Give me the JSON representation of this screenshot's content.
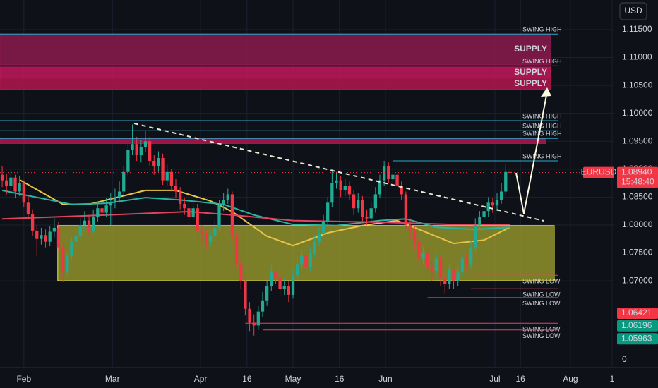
{
  "chart_data": {
    "type": "candlestick",
    "symbol": "EURUSD",
    "currency": "USD",
    "up_color": "#22ab94",
    "down_color": "#f23645",
    "xlim": [
      -0.5,
      141
    ],
    "ylim": [
      1.0546,
      1.1203
    ],
    "yticks": [
      {
        "value": 1.115,
        "label": "1.11500"
      },
      {
        "value": 1.11,
        "label": "1.11000"
      },
      {
        "value": 1.105,
        "label": "1.10500"
      },
      {
        "value": 1.1,
        "label": "1.10000"
      },
      {
        "value": 1.095,
        "label": "1.09500"
      },
      {
        "value": 1.09,
        "label": "1.09000"
      },
      {
        "value": 1.085,
        "label": "1.08500"
      },
      {
        "value": 1.08,
        "label": "1.08000"
      },
      {
        "value": 1.075,
        "label": "1.07500"
      },
      {
        "value": 1.07,
        "label": "1.07000"
      }
    ],
    "xticks": [
      {
        "value": 5,
        "label": "Feb"
      },
      {
        "value": 25.4,
        "label": "Mar"
      },
      {
        "value": 45.7,
        "label": "Apr"
      },
      {
        "value": 56.4,
        "label": "16"
      },
      {
        "value": 67,
        "label": "May"
      },
      {
        "value": 77.7,
        "label": "16"
      },
      {
        "value": 88.3,
        "label": "Jun"
      },
      {
        "value": 113.5,
        "label": "Jul"
      },
      {
        "value": 119.4,
        "label": "16"
      },
      {
        "value": 130.9,
        "label": "Aug"
      },
      {
        "value": 140.5,
        "label": "1"
      }
    ],
    "volume_scale_label": "0",
    "current_price": {
      "value": 1.0894,
      "label": "1.08940",
      "countdown": "15:48:40"
    },
    "price_tags": [
      {
        "value": 1.06421,
        "label": "1.06421",
        "color": "#f23645"
      },
      {
        "value": 1.06196,
        "label": "1.06196",
        "color": "#089981"
      },
      {
        "value": 1.05963,
        "label": "1.05963",
        "color": "#089981"
      }
    ],
    "ohlc": [
      [
        1.089,
        1.0905,
        1.0868,
        1.088
      ],
      [
        1.088,
        1.0892,
        1.0855,
        1.087
      ],
      [
        1.087,
        1.0898,
        1.0862,
        1.0885
      ],
      [
        1.0885,
        1.089,
        1.0848,
        1.086
      ],
      [
        1.086,
        1.0888,
        1.0852,
        1.0875
      ],
      [
        1.0875,
        1.088,
        1.0832,
        1.084
      ],
      [
        1.084,
        1.0852,
        1.081,
        1.082
      ],
      [
        1.082,
        1.0828,
        1.078,
        1.079
      ],
      [
        1.079,
        1.08,
        1.0745,
        1.0775
      ],
      [
        1.0775,
        1.0795,
        1.0765,
        1.0782
      ],
      [
        1.0782,
        1.0792,
        1.076,
        1.077
      ],
      [
        1.077,
        1.0798,
        1.0762,
        1.0788
      ],
      [
        1.0788,
        1.0812,
        1.0778,
        1.0795
      ],
      [
        1.0795,
        1.0805,
        1.0752,
        1.076
      ],
      [
        1.076,
        1.0768,
        1.0698,
        1.0715
      ],
      [
        1.0715,
        1.0752,
        1.0708,
        1.0745
      ],
      [
        1.0745,
        1.0778,
        1.0738,
        1.077
      ],
      [
        1.077,
        1.0792,
        1.076,
        1.078
      ],
      [
        1.078,
        1.0812,
        1.0772,
        1.08
      ],
      [
        1.08,
        1.0825,
        1.079,
        1.0808
      ],
      [
        1.0808,
        1.0818,
        1.0782,
        1.079
      ],
      [
        1.079,
        1.0828,
        1.0785,
        1.0815
      ],
      [
        1.0815,
        1.0842,
        1.0805,
        1.083
      ],
      [
        1.083,
        1.084,
        1.081,
        1.0822
      ],
      [
        1.0822,
        1.0848,
        1.0815,
        1.0835
      ],
      [
        1.0835,
        1.0858,
        1.08,
        1.084
      ],
      [
        1.084,
        1.0865,
        1.083,
        1.085
      ],
      [
        1.085,
        1.0878,
        1.084,
        1.086
      ],
      [
        1.086,
        1.0905,
        1.0852,
        1.0895
      ],
      [
        1.0895,
        1.0948,
        1.0888,
        1.0935
      ],
      [
        1.0935,
        1.098,
        1.0925,
        1.0945
      ],
      [
        1.0945,
        1.0958,
        1.0915,
        1.0925
      ],
      [
        1.0925,
        1.0952,
        1.0912,
        1.094
      ],
      [
        1.094,
        1.0968,
        1.093,
        1.095
      ],
      [
        1.095,
        1.0958,
        1.0905,
        1.0915
      ],
      [
        1.0915,
        1.0925,
        1.089,
        1.0905
      ],
      [
        1.0905,
        1.0932,
        1.0895,
        1.092
      ],
      [
        1.092,
        1.0928,
        1.0872,
        1.088
      ],
      [
        1.088,
        1.0908,
        1.087,
        1.0895
      ],
      [
        1.0895,
        1.09,
        1.086,
        1.087
      ],
      [
        1.087,
        1.0882,
        1.0848,
        1.086
      ],
      [
        1.086,
        1.0868,
        1.0828,
        1.0838
      ],
      [
        1.0838,
        1.0848,
        1.0818,
        1.083
      ],
      [
        1.083,
        1.084,
        1.08,
        1.0815
      ],
      [
        1.0815,
        1.0842,
        1.0808,
        1.083
      ],
      [
        1.083,
        1.0838,
        1.0775,
        1.079
      ],
      [
        1.079,
        1.08,
        1.077,
        1.0785
      ],
      [
        1.0785,
        1.0792,
        1.0755,
        1.077
      ],
      [
        1.077,
        1.079,
        1.0762,
        1.078
      ],
      [
        1.078,
        1.0808,
        1.0772,
        1.0795
      ],
      [
        1.0795,
        1.0845,
        1.0788,
        1.0835
      ],
      [
        1.0835,
        1.0858,
        1.0825,
        1.0845
      ],
      [
        1.0845,
        1.0865,
        1.0838,
        1.0855
      ],
      [
        1.0855,
        1.086,
        1.077,
        1.078
      ],
      [
        1.078,
        1.0788,
        1.072,
        1.073
      ],
      [
        1.073,
        1.0738,
        1.0685,
        1.07
      ],
      [
        1.07,
        1.071,
        1.0638,
        1.065
      ],
      [
        1.065,
        1.0662,
        1.061,
        1.0625
      ],
      [
        1.0625,
        1.064,
        1.0602,
        1.062
      ],
      [
        1.062,
        1.0655,
        1.0612,
        1.0645
      ],
      [
        1.0645,
        1.068,
        1.0635,
        1.0665
      ],
      [
        1.0665,
        1.07,
        1.0655,
        1.069
      ],
      [
        1.069,
        1.0728,
        1.0682,
        1.0715
      ],
      [
        1.0715,
        1.0725,
        1.0695,
        1.0705
      ],
      [
        1.0705,
        1.0715,
        1.0672,
        1.0685
      ],
      [
        1.0685,
        1.0705,
        1.0675,
        1.069
      ],
      [
        1.069,
        1.07,
        1.0662,
        1.0675
      ],
      [
        1.0675,
        1.072,
        1.0668,
        1.071
      ],
      [
        1.071,
        1.0742,
        1.0702,
        1.073
      ],
      [
        1.073,
        1.0755,
        1.072,
        1.0745
      ],
      [
        1.0745,
        1.0752,
        1.0715,
        1.0725
      ],
      [
        1.0725,
        1.076,
        1.0718,
        1.075
      ],
      [
        1.075,
        1.0782,
        1.0742,
        1.077
      ],
      [
        1.077,
        1.0795,
        1.0762,
        1.0785
      ],
      [
        1.0785,
        1.0818,
        1.0778,
        1.0805
      ],
      [
        1.0805,
        1.085,
        1.0798,
        1.084
      ],
      [
        1.084,
        1.09,
        1.0832,
        1.0875
      ],
      [
        1.0875,
        1.0895,
        1.0865,
        1.088
      ],
      [
        1.088,
        1.0888,
        1.085,
        1.0862
      ],
      [
        1.0862,
        1.0882,
        1.0852,
        1.087
      ],
      [
        1.087,
        1.0878,
        1.0845,
        1.0855
      ],
      [
        1.0855,
        1.0862,
        1.0818,
        1.083
      ],
      [
        1.083,
        1.0858,
        1.0822,
        1.0845
      ],
      [
        1.0845,
        1.0852,
        1.0805,
        1.0815
      ],
      [
        1.0815,
        1.0828,
        1.08,
        1.0812
      ],
      [
        1.0812,
        1.0842,
        1.0805,
        1.083
      ],
      [
        1.083,
        1.0868,
        1.0822,
        1.0855
      ],
      [
        1.0855,
        1.089,
        1.0848,
        1.088
      ],
      [
        1.088,
        1.0915,
        1.087,
        1.0905
      ],
      [
        1.0905,
        1.0912,
        1.0875,
        1.0882
      ],
      [
        1.0882,
        1.0902,
        1.087,
        1.089
      ],
      [
        1.089,
        1.0898,
        1.0862,
        1.087
      ],
      [
        1.087,
        1.0878,
        1.0845,
        1.0855
      ],
      [
        1.0855,
        1.086,
        1.0792,
        1.08
      ],
      [
        1.08,
        1.0812,
        1.0775,
        1.079
      ],
      [
        1.079,
        1.0798,
        1.0755,
        1.077
      ],
      [
        1.077,
        1.0778,
        1.0728,
        1.074
      ],
      [
        1.074,
        1.0762,
        1.073,
        1.075
      ],
      [
        1.075,
        1.0758,
        1.0712,
        1.0725
      ],
      [
        1.0725,
        1.0735,
        1.07,
        1.0718
      ],
      [
        1.0718,
        1.075,
        1.0708,
        1.074
      ],
      [
        1.074,
        1.0745,
        1.069,
        1.0705
      ],
      [
        1.0705,
        1.0715,
        1.0678,
        1.0695
      ],
      [
        1.0695,
        1.073,
        1.0685,
        1.072
      ],
      [
        1.072,
        1.0728,
        1.0685,
        1.07
      ],
      [
        1.07,
        1.0725,
        1.069,
        1.0715
      ],
      [
        1.0715,
        1.075,
        1.0708,
        1.074
      ],
      [
        1.074,
        1.0748,
        1.0718,
        1.073
      ],
      [
        1.073,
        1.0772,
        1.0722,
        1.076
      ],
      [
        1.076,
        1.0812,
        1.0752,
        1.08
      ],
      [
        1.08,
        1.0825,
        1.0792,
        1.0815
      ],
      [
        1.0815,
        1.0838,
        1.0805,
        1.0825
      ],
      [
        1.0825,
        1.085,
        1.0815,
        1.084
      ],
      [
        1.084,
        1.0848,
        1.0822,
        1.0835
      ],
      [
        1.0835,
        1.0858,
        1.0825,
        1.0845
      ],
      [
        1.0845,
        1.0875,
        1.0838,
        1.086
      ],
      [
        1.086,
        1.0908,
        1.0855,
        1.0895
      ],
      [
        1.0895,
        1.0902,
        1.088,
        1.0894
      ]
    ],
    "moving_averages": [
      {
        "color": "#e8c547",
        "x": [
          4,
          14,
          20,
          33,
          40,
          48,
          53,
          61,
          67,
          75,
          83,
          91,
          98,
          104,
          111,
          117
        ],
        "values": [
          1.0881,
          1.0837,
          1.0837,
          1.0862,
          1.0862,
          1.0843,
          1.0824,
          1.078,
          1.0763,
          1.0786,
          1.0799,
          1.0808,
          1.0786,
          1.0767,
          1.0773,
          1.0796
        ]
      },
      {
        "color": "#2bb5a0",
        "x": [
          0,
          16,
          24,
          33,
          41,
          51,
          58,
          67,
          77,
          87,
          93,
          100,
          109,
          117
        ],
        "values": [
          1.0862,
          1.0837,
          1.0839,
          1.0849,
          1.0845,
          1.0837,
          1.0818,
          1.0801,
          1.0799,
          1.0808,
          1.0811,
          1.0796,
          1.0792,
          1.0796
        ]
      },
      {
        "color": "#e0445e",
        "x": [
          0,
          24,
          43,
          53,
          67,
          87,
          104,
          117
        ],
        "values": [
          1.0811,
          1.0818,
          1.0824,
          1.0818,
          1.0808,
          1.0805,
          1.0801,
          1.0801
        ]
      }
    ],
    "zones": [
      {
        "label": "SUPPLY",
        "top": 1.1142,
        "bottom": 1.1087,
        "start": -0.5,
        "color": "#8a1a4e"
      },
      {
        "label": "SUPPLY",
        "top": 1.1083,
        "bottom": 1.1063,
        "start": -0.5,
        "color": "#c2185b"
      },
      {
        "label": "SUPPLY",
        "top": 1.1063,
        "bottom": 1.1043,
        "start": -0.5,
        "color": "#b0164f"
      },
      {
        "top": 1.0955,
        "bottom": 1.0946,
        "start": -0.5,
        "color": "#b0164f"
      },
      {
        "top": 1.0799,
        "bottom": 1.07,
        "start": 12.8,
        "color": "#a3a32e"
      }
    ],
    "swing_highs": [
      {
        "label": "SWING HIGH",
        "value": 1.1142,
        "start": -0.5
      },
      {
        "label": "SWING HIGH",
        "value": 1.1085,
        "start": -0.5
      },
      {
        "label": "SWING HIGH",
        "value": 1.0987,
        "start": -0.5
      },
      {
        "label": "SWING HIGH",
        "value": 1.0969,
        "start": -0.5
      },
      {
        "label": "SWING HIGH",
        "value": 1.0955,
        "start": -0.5
      },
      {
        "label": "SWING HIGH",
        "value": 1.0915,
        "start": 90
      }
    ],
    "swing_lows": [
      {
        "label": "SWING LOW",
        "value": 1.071,
        "start": 108.5
      },
      {
        "label": "SWING LOW",
        "value": 1.0686,
        "start": 108
      },
      {
        "label": "SWING LOW",
        "value": 1.067,
        "start": 98
      },
      {
        "label": "SWING LOW",
        "value": 1.0624,
        "start": 56
      },
      {
        "label": "SWING LOW",
        "value": 1.0612,
        "start": 60
      }
    ]
  }
}
